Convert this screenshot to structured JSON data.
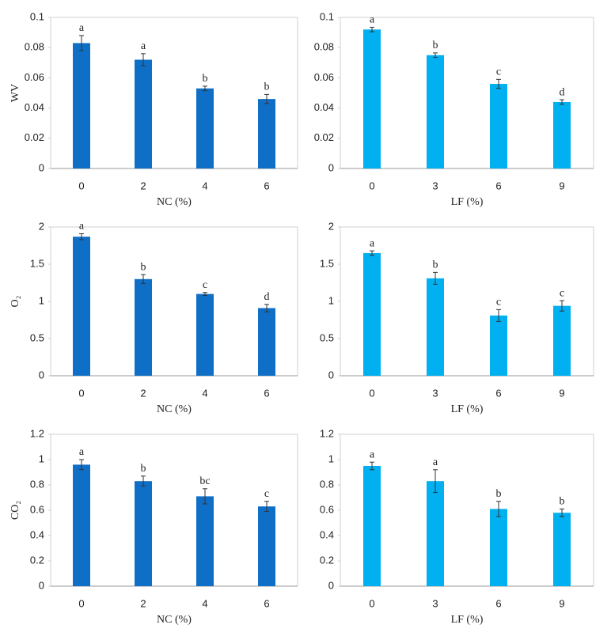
{
  "chart_data": [
    {
      "type": "bar",
      "ylabel": "WV",
      "xlabel": "NC (%)",
      "categories": [
        "0",
        "2",
        "4",
        "6"
      ],
      "values": [
        0.083,
        0.072,
        0.053,
        0.046
      ],
      "errors": [
        0.005,
        0.004,
        0.0015,
        0.003
      ],
      "annotations": [
        "a",
        "a",
        "b",
        "b"
      ],
      "color": "#0f6fc6",
      "ylim": [
        0,
        0.1
      ],
      "yticks": [
        0,
        0.02,
        0.04,
        0.06,
        0.08,
        0.1
      ]
    },
    {
      "type": "bar",
      "xlabel": "LF (%)",
      "categories": [
        "0",
        "3",
        "6",
        "9"
      ],
      "values": [
        0.092,
        0.075,
        0.056,
        0.044
      ],
      "errors": [
        0.0015,
        0.0015,
        0.003,
        0.0015
      ],
      "annotations": [
        "a",
        "b",
        "c",
        "d"
      ],
      "color": "#00b0f0",
      "ylim": [
        0,
        0.1
      ],
      "yticks": [
        0,
        0.02,
        0.04,
        0.06,
        0.08,
        0.1
      ]
    },
    {
      "type": "bar",
      "ylabel": "O₂",
      "xlabel": "NC (%)",
      "categories": [
        "0",
        "2",
        "4",
        "6"
      ],
      "values": [
        1.87,
        1.3,
        1.1,
        0.91
      ],
      "errors": [
        0.04,
        0.06,
        0.02,
        0.05
      ],
      "annotations": [
        "a",
        "b",
        "c",
        "d"
      ],
      "color": "#0f6fc6",
      "ylim": [
        0,
        2
      ],
      "yticks": [
        0,
        0.5,
        1,
        1.5,
        2
      ]
    },
    {
      "type": "bar",
      "xlabel": "LF (%)",
      "categories": [
        "0",
        "3",
        "6",
        "9"
      ],
      "values": [
        1.65,
        1.31,
        0.81,
        0.94
      ],
      "errors": [
        0.03,
        0.08,
        0.08,
        0.07
      ],
      "annotations": [
        "a",
        "b",
        "c",
        "c"
      ],
      "color": "#00b0f0",
      "ylim": [
        0,
        2
      ],
      "yticks": [
        0,
        0.5,
        1,
        1.5,
        2
      ]
    },
    {
      "type": "bar",
      "ylabel": "CO₂",
      "xlabel": "NC (%)",
      "categories": [
        "0",
        "2",
        "4",
        "6"
      ],
      "values": [
        0.96,
        0.83,
        0.71,
        0.63
      ],
      "errors": [
        0.04,
        0.04,
        0.06,
        0.04
      ],
      "annotations": [
        "a",
        "b",
        "bc",
        "c"
      ],
      "color": "#0f6fc6",
      "ylim": [
        0,
        1.2
      ],
      "yticks": [
        0,
        0.2,
        0.4,
        0.6,
        0.8,
        1,
        1.2
      ]
    },
    {
      "type": "bar",
      "xlabel": "LF (%)",
      "categories": [
        "0",
        "3",
        "6",
        "9"
      ],
      "values": [
        0.95,
        0.83,
        0.61,
        0.58
      ],
      "errors": [
        0.03,
        0.09,
        0.06,
        0.03
      ],
      "annotations": [
        "a",
        "a",
        "b",
        "b"
      ],
      "color": "#00b0f0",
      "ylim": [
        0,
        1.2
      ],
      "yticks": [
        0,
        0.2,
        0.4,
        0.6,
        0.8,
        1,
        1.2
      ]
    }
  ]
}
